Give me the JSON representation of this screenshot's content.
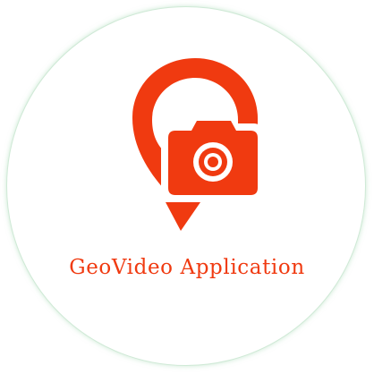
{
  "app": {
    "title": "GeoVideo Application"
  },
  "logo": {
    "icon": "geo-camera-pin-icon",
    "accent_color": "#f03a10",
    "background_color": "#ffffff",
    "ring_color": "#cfe9d6"
  }
}
